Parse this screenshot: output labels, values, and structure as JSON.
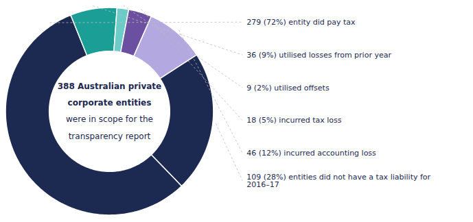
{
  "chart_data": {
    "type": "donut",
    "categories": [
      "279 (72%) entity did pay tax",
      "36 (9%) utilised losses from prior year",
      "9 (2%) utilised offsets",
      "18 (5%) incurred tax loss",
      "46 (12%) incurred accounting loss",
      "109 (28%) entities did not have a tax liability for 2016–17"
    ],
    "values": [
      279,
      36,
      9,
      18,
      46,
      109
    ],
    "colors": [
      "#1c2951",
      "#1a9e96",
      "#6eccc8",
      "#6b4fa0",
      "#b3a8e0",
      "#1c2951"
    ],
    "annotations": [
      "388 Australian private",
      "corporate entities",
      "were in scope for the",
      "transparency report"
    ]
  }
}
